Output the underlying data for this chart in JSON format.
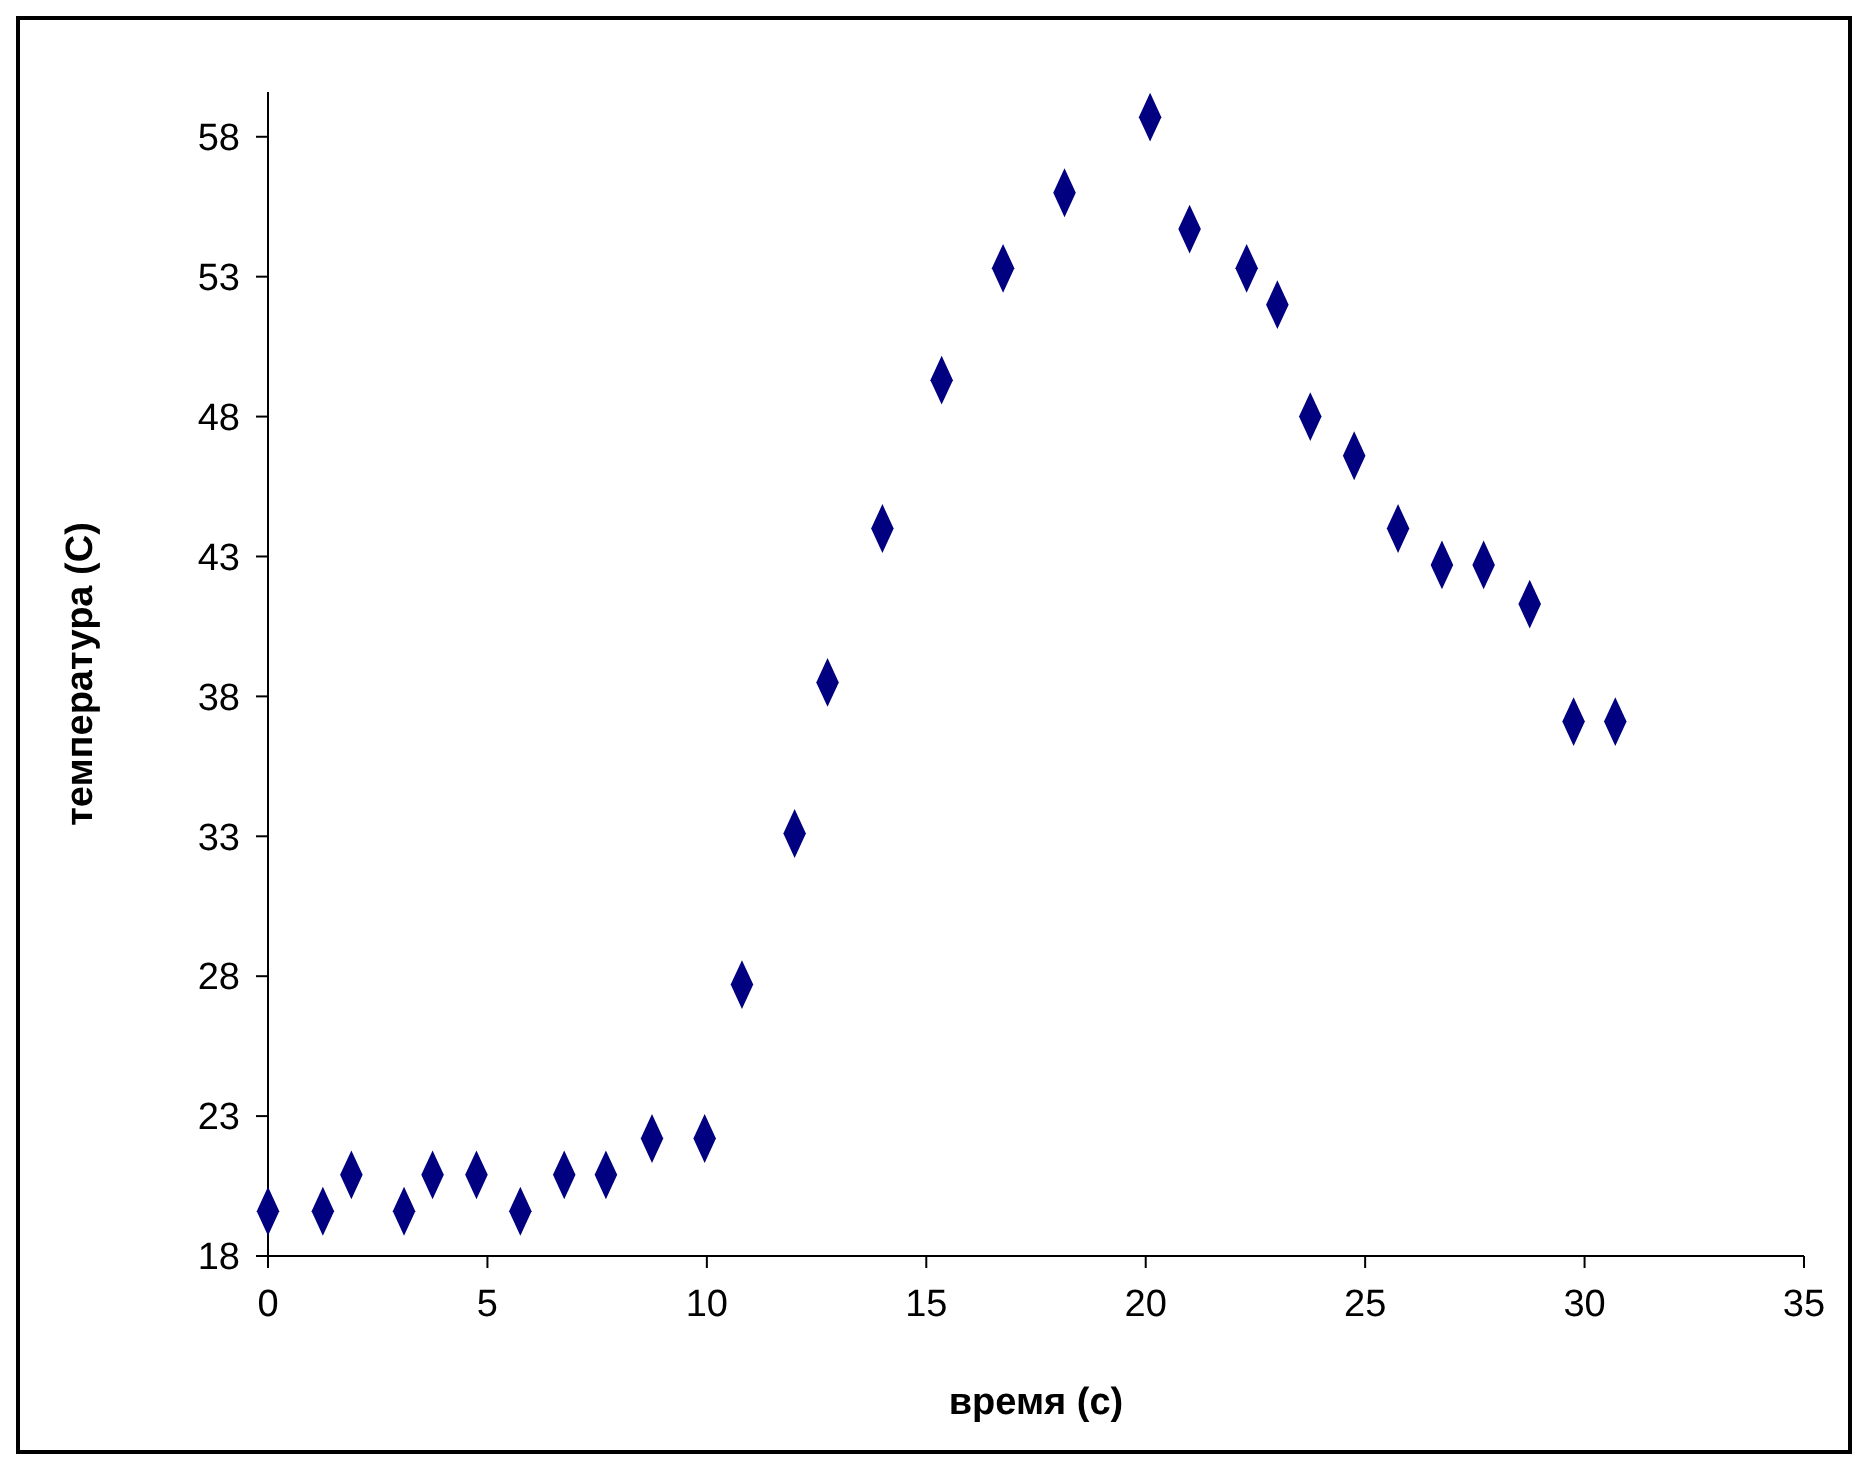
{
  "chart_data": {
    "type": "scatter",
    "xlabel": "время (с)",
    "ylabel": "температура (С)",
    "marker": "diamond",
    "grid": false,
    "xlim": [
      0,
      35
    ],
    "xticks": [
      0,
      5,
      10,
      15,
      20,
      25,
      30,
      35
    ],
    "ylim": [
      18,
      59.6
    ],
    "yticks": [
      18,
      23,
      28,
      33,
      38,
      43,
      48,
      53,
      58
    ],
    "series": [
      {
        "color": "#000080",
        "x": [
          0,
          1.25,
          1.9,
          3.1,
          3.75,
          4.75,
          5.75,
          6.75,
          7.7,
          8.75,
          9.95,
          10.8,
          12,
          12.75,
          14,
          15.35,
          16.75,
          18.15,
          20.1,
          21,
          22.3,
          23,
          23.75,
          24.75,
          25.75,
          26.75,
          27.7,
          28.75,
          29.75,
          30.7
        ],
        "values": [
          19.6,
          19.6,
          20.9,
          19.6,
          20.9,
          20.9,
          19.6,
          20.9,
          20.9,
          22.2,
          22.2,
          27.7,
          33.1,
          38.5,
          44,
          49.3,
          53.3,
          56,
          58.7,
          54.7,
          53.3,
          52,
          48,
          46.6,
          44,
          42.7,
          42.7,
          41.3,
          37.1,
          37.1
        ]
      }
    ]
  }
}
